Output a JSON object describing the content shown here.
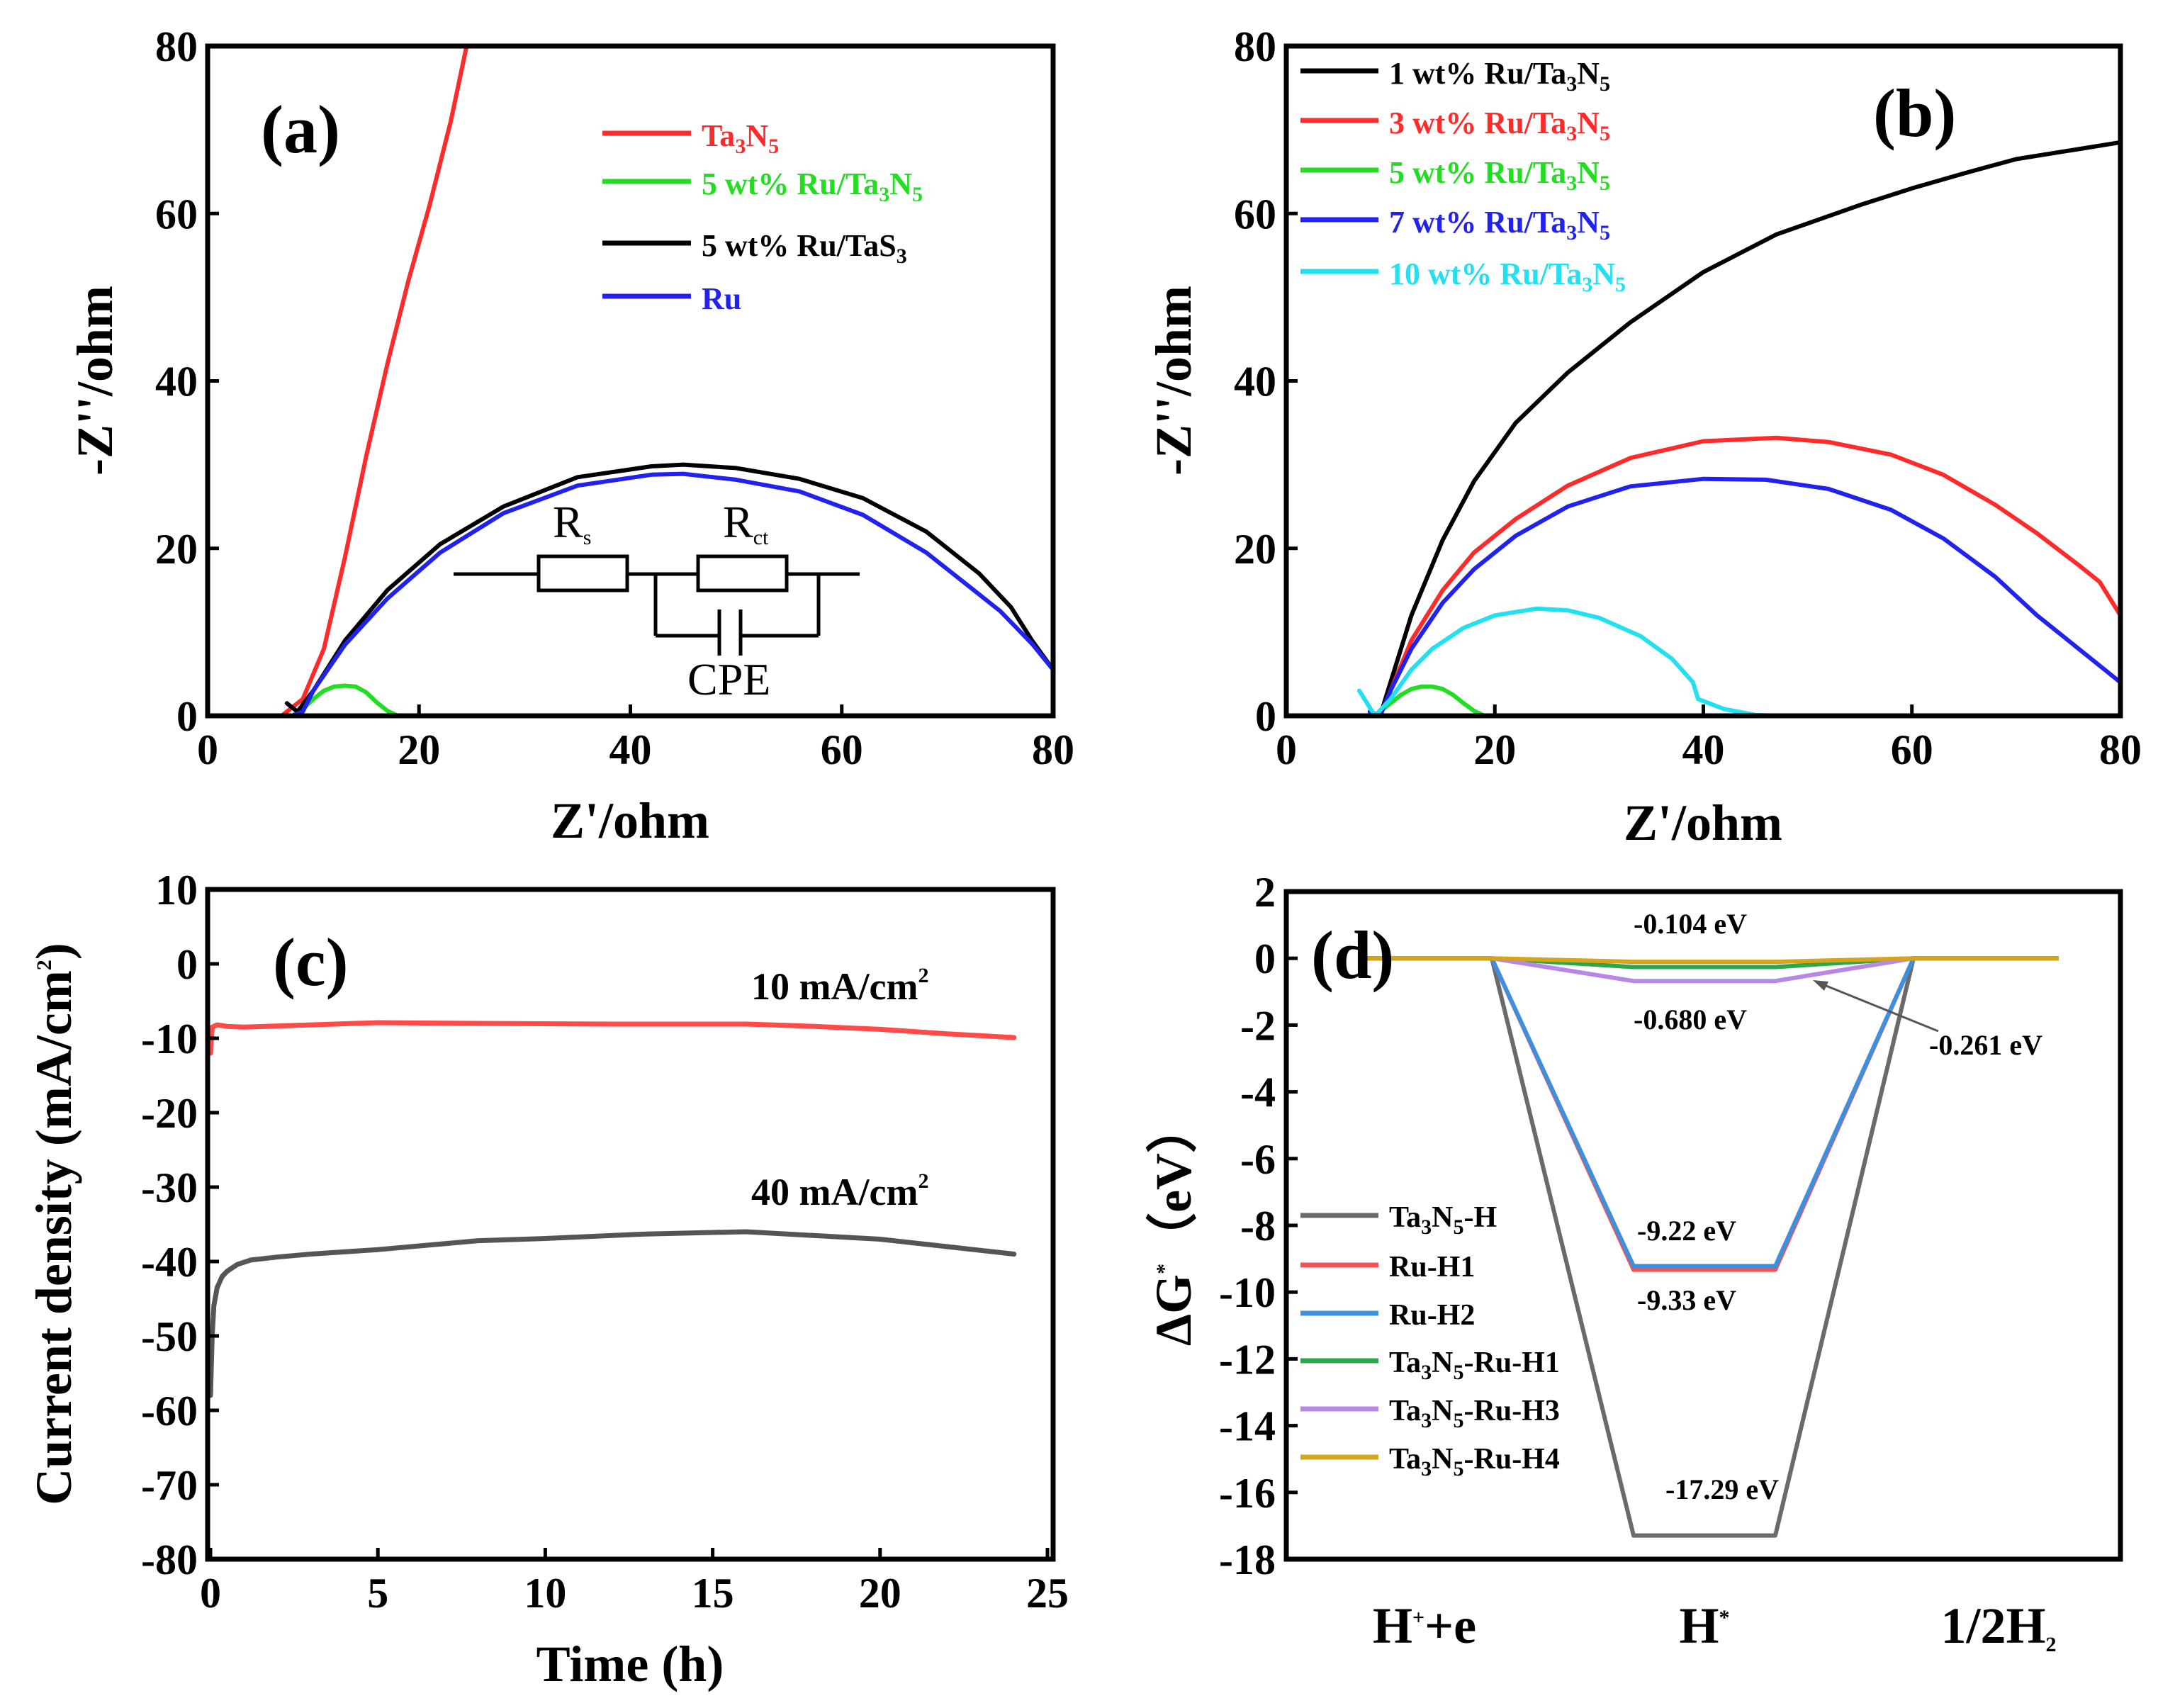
{
  "colors": {
    "red": "#ff2a2a",
    "green": "#22dd22",
    "black": "#000000",
    "blue": "#2222ee",
    "cyan": "#22e0f0",
    "gray": "#555555",
    "red_c": "#ff4a4a",
    "d_gray": "#6a6a6a",
    "d_red": "#f05555",
    "d_blue": "#3f8fdf",
    "d_green": "#2aa84a",
    "d_purple": "#b887e6",
    "d_gold": "#d4a41a"
  },
  "chart_data": [
    {
      "id": "a",
      "label": "(a)",
      "type": "line",
      "xlabel": "Z'/ohm",
      "ylabel": "-Z''/ohm",
      "xlim": [
        0,
        80
      ],
      "ylim": [
        0,
        80
      ],
      "xticks": [
        "0",
        "20",
        "40",
        "60",
        "80"
      ],
      "yticks": [
        "0",
        "20",
        "40",
        "60",
        "80"
      ],
      "legend": [
        {
          "name": "Ta3N5",
          "base": "Ta",
          "sub1": "3",
          "mid": "N",
          "sub2": "5",
          "rest": ""
        },
        {
          "name": "5 wt% Ru/Ta3N5",
          "base": "5 wt% Ru/Ta",
          "sub1": "3",
          "mid": "N",
          "sub2": "5",
          "rest": ""
        },
        {
          "name": "5 wt% Ru/TaS3",
          "base": "5 wt% Ru/TaS",
          "sub1": "3",
          "mid": "",
          "sub2": "",
          "rest": ""
        },
        {
          "name": "Ru",
          "base": "Ru",
          "sub1": "",
          "mid": "",
          "sub2": "",
          "rest": ""
        }
      ],
      "circuit": {
        "rs": "R",
        "rs_sub": "s",
        "rct": "R",
        "rct_sub": "ct",
        "cpe": "CPE"
      },
      "series": [
        {
          "name": "Ta3N5",
          "color": "red",
          "x": [
            7,
            9,
            11,
            13,
            15,
            17,
            19,
            21,
            23,
            24.5
          ],
          "y": [
            0,
            2,
            8,
            19,
            31,
            42,
            52,
            61,
            71,
            80
          ]
        },
        {
          "name": "5 wt% Ru/Ta3N5",
          "color": "green",
          "x": [
            8,
            9,
            10,
            11,
            12,
            13,
            14,
            15,
            16,
            17,
            18
          ],
          "y": [
            0,
            0.8,
            2,
            3,
            3.5,
            3.6,
            3.5,
            2.8,
            1.6,
            0.6,
            0
          ]
        },
        {
          "name": "5 wt% Ru/TaS3",
          "color": "black",
          "x": [
            7.5,
            8.5,
            10,
            13,
            17,
            22,
            28,
            35,
            42,
            45,
            50,
            56,
            62,
            68,
            73,
            76,
            78,
            80
          ],
          "y": [
            1.5,
            0.5,
            3,
            9,
            15,
            20.5,
            25,
            28.5,
            29.8,
            30,
            29.6,
            28.3,
            26,
            22,
            17,
            13,
            9,
            5.5
          ]
        },
        {
          "name": "Ru",
          "color": "blue",
          "x": [
            8,
            9,
            10,
            13,
            17,
            22,
            28,
            35,
            42,
            45,
            50,
            56,
            62,
            68,
            72,
            75,
            78,
            80
          ],
          "y": [
            0,
            0.5,
            3,
            8.5,
            14,
            19.5,
            24.2,
            27.5,
            28.8,
            28.9,
            28.2,
            26.8,
            24,
            19.5,
            15.5,
            12.5,
            8.6,
            5.5
          ]
        }
      ]
    },
    {
      "id": "b",
      "label": "(b)",
      "type": "line",
      "xlabel": "Z'/ohm",
      "ylabel": "-Z''/ohm",
      "xlim": [
        0,
        80
      ],
      "ylim": [
        0,
        80
      ],
      "xticks": [
        "0",
        "20",
        "40",
        "60",
        "80"
      ],
      "yticks": [
        "0",
        "20",
        "40",
        "60",
        "80"
      ],
      "legend": [
        {
          "name": "1 wt% Ru/Ta3N5",
          "base": "1 wt% Ru/Ta",
          "sub1": "3",
          "mid": "N",
          "sub2": "5",
          "rest": ""
        },
        {
          "name": "3 wt% Ru/Ta3N5",
          "base": "3 wt% Ru/Ta",
          "sub1": "3",
          "mid": "N",
          "sub2": "5",
          "rest": ""
        },
        {
          "name": "5 wt% Ru/Ta3N5",
          "base": "5 wt% Ru/Ta",
          "sub1": "3",
          "mid": "N",
          "sub2": "5",
          "rest": ""
        },
        {
          "name": "7 wt% Ru/Ta3N5",
          "base": "7 wt% Ru/Ta",
          "sub1": "3",
          "mid": "N",
          "sub2": "5",
          "rest": ""
        },
        {
          "name": "10 wt% Ru/Ta3N5",
          "base": "10 wt% Ru/Ta",
          "sub1": "3",
          "mid": "N",
          "sub2": "5",
          "rest": ""
        }
      ],
      "series": [
        {
          "name": "1 wt% Ru/Ta3N5",
          "color": "black",
          "x": [
            9,
            10,
            12,
            15,
            18,
            22,
            27,
            33,
            40,
            47,
            55,
            60,
            65,
            70,
            75,
            80
          ],
          "y": [
            0,
            4,
            12,
            21,
            28,
            35,
            41,
            47,
            53,
            57.5,
            61,
            63,
            64.8,
            66.5,
            67.5,
            68.5
          ]
        },
        {
          "name": "3 wt% Ru/Ta3N5",
          "color": "red",
          "x": [
            9,
            10,
            12,
            15,
            18,
            22,
            27,
            33,
            40,
            47,
            52,
            58,
            63,
            68,
            72,
            76,
            78,
            80
          ],
          "y": [
            0,
            3,
            9,
            15,
            19.5,
            23.5,
            27.5,
            30.8,
            32.8,
            33.2,
            32.7,
            31.2,
            28.8,
            25.2,
            21.8,
            18,
            16,
            12
          ]
        },
        {
          "name": "5 wt% Ru/Ta3N5",
          "color": "green",
          "x": [
            8.5,
            10,
            11,
            12,
            13,
            14,
            15,
            16,
            17,
            18,
            19
          ],
          "y": [
            0,
            1.5,
            2.5,
            3.2,
            3.5,
            3.5,
            3.2,
            2.5,
            1.5,
            0.6,
            0
          ]
        },
        {
          "name": "7 wt% Ru/Ta3N5",
          "color": "blue",
          "x": [
            8,
            9,
            10,
            12,
            15,
            18,
            22,
            27,
            33,
            40,
            46,
            52,
            58,
            63,
            68,
            72,
            76,
            80
          ],
          "y": [
            0.5,
            0,
            3,
            8,
            13.5,
            17.5,
            21.5,
            25,
            27.4,
            28.3,
            28.2,
            27.1,
            24.6,
            21.2,
            16.6,
            12,
            8,
            4
          ]
        },
        {
          "name": "10 wt% Ru/Ta3N5",
          "color": "cyan",
          "x": [
            7,
            8,
            8.5,
            10,
            12,
            14,
            17,
            20,
            24,
            27,
            30,
            34,
            37,
            39,
            39.5,
            42,
            45,
            47
          ],
          "y": [
            3,
            1,
            0,
            2,
            5.5,
            8,
            10.5,
            12,
            12.8,
            12.6,
            11.7,
            9.5,
            6.8,
            4,
            2,
            0.8,
            0.1,
            0
          ]
        }
      ]
    },
    {
      "id": "c",
      "label": "(c)",
      "type": "line",
      "xlabel": "Time (h)",
      "ylabel": "Current density (mA/cm",
      "ylabel_sup": "2",
      "ylabel_end": ")",
      "xlim": [
        0,
        25
      ],
      "ylim": [
        -80,
        10
      ],
      "xticks": [
        "0",
        "5",
        "10",
        "15",
        "20",
        "25"
      ],
      "yticks": [
        "10",
        "0",
        "-10",
        "-20",
        "-30",
        "-40",
        "-50",
        "-60",
        "-70",
        "-80"
      ],
      "annotations": [
        {
          "text": "10 mA/cm",
          "sup": "2"
        },
        {
          "text": "40 mA/cm",
          "sup": "2"
        }
      ],
      "series": [
        {
          "name": "10 mA/cm2",
          "color": "red_c",
          "x": [
            0,
            0.05,
            0.2,
            0.5,
            1,
            3,
            5,
            8,
            12,
            16,
            17.5,
            20,
            22,
            24
          ],
          "y": [
            -12,
            -8.5,
            -8.2,
            -8.4,
            -8.5,
            -8.2,
            -7.9,
            -8,
            -8.1,
            -8.1,
            -8.3,
            -8.8,
            -9.4,
            -9.9
          ]
        },
        {
          "name": "40 mA/cm2",
          "color": "gray",
          "x": [
            0,
            0.05,
            0.1,
            0.2,
            0.35,
            0.5,
            0.8,
            1.2,
            2,
            3,
            5,
            8,
            10,
            13,
            16,
            18,
            20,
            22,
            24
          ],
          "y": [
            -58,
            -50,
            -46,
            -43.5,
            -42,
            -41.3,
            -40.4,
            -39.8,
            -39.4,
            -39,
            -38.4,
            -37.2,
            -36.9,
            -36.3,
            -36,
            -36.5,
            -37,
            -38,
            -39
          ]
        }
      ]
    },
    {
      "id": "d",
      "label": "(d)",
      "type": "line",
      "ylabel": "ΔG",
      "ylabel_sup": "*",
      "ylabel_end": "（eV）",
      "xcategories": [
        {
          "base": "H",
          "sup": "+",
          "rest": "+e"
        },
        {
          "base": "H",
          "sup": "*",
          "rest": ""
        },
        {
          "base": "1/2H",
          "sub": "2",
          "rest": ""
        }
      ],
      "ylim": [
        -18,
        2
      ],
      "yticks": [
        "2",
        "0",
        "-2",
        "-4",
        "-6",
        "-8",
        "-10",
        "-12",
        "-14",
        "-16",
        "-18"
      ],
      "annotations": [
        "-0.104 eV",
        "-0.680 eV",
        "-0.261 eV",
        "-9.22 eV",
        "-9.33 eV",
        "-17.29 eV"
      ],
      "legend": [
        {
          "name": "Ta3N5-H",
          "base": "Ta",
          "sub1": "3",
          "mid": "N",
          "sub2": "5",
          "rest": "-H"
        },
        {
          "name": "Ru-H1",
          "base": "Ru-H1",
          "sub1": "",
          "mid": "",
          "sub2": "",
          "rest": ""
        },
        {
          "name": "Ru-H2",
          "base": "Ru-H2",
          "sub1": "",
          "mid": "",
          "sub2": "",
          "rest": ""
        },
        {
          "name": "Ta3N5-Ru-H1",
          "base": "Ta",
          "sub1": "3",
          "mid": "N",
          "sub2": "5",
          "rest": "-Ru-H1"
        },
        {
          "name": "Ta3N5-Ru-H3",
          "base": "Ta",
          "sub1": "3",
          "mid": "N",
          "sub2": "5",
          "rest": "-Ru-H3"
        },
        {
          "name": "Ta3N5-Ru-H4",
          "base": "Ta",
          "sub1": "3",
          "mid": "N",
          "sub2": "5",
          "rest": "-Ru-H4"
        }
      ],
      "series": [
        {
          "name": "Ta3N5-H",
          "color": "d_gray",
          "values": [
            0,
            -17.29,
            0
          ]
        },
        {
          "name": "Ru-H1",
          "color": "d_red",
          "values": [
            0,
            -9.33,
            0
          ]
        },
        {
          "name": "Ru-H2",
          "color": "d_blue",
          "values": [
            0,
            -9.22,
            0
          ]
        },
        {
          "name": "Ta3N5-Ru-H1",
          "color": "d_green",
          "values": [
            0,
            -0.261,
            0
          ]
        },
        {
          "name": "Ta3N5-Ru-H3",
          "color": "d_purple",
          "values": [
            0,
            -0.68,
            0
          ]
        },
        {
          "name": "Ta3N5-Ru-H4",
          "color": "d_gold",
          "values": [
            0,
            -0.104,
            0
          ]
        }
      ]
    }
  ]
}
